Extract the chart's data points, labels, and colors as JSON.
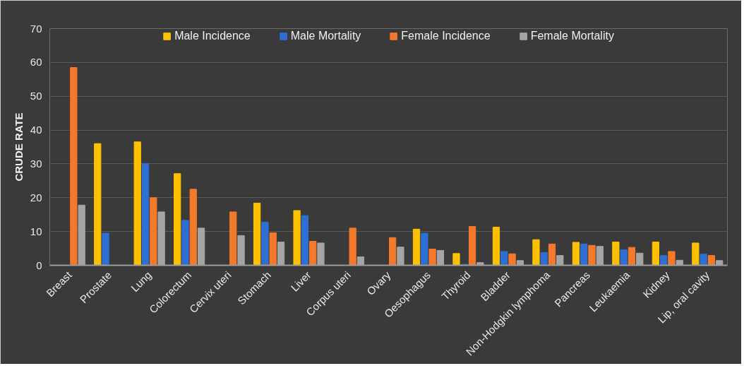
{
  "chart_data": {
    "type": "bar",
    "ylabel": "CRUDE RATE",
    "categories": [
      "Breast",
      "Prostate",
      "Lung",
      "Colorectum",
      "Cervix uteri",
      "Stomach",
      "Liver",
      "Corpus uteri",
      "Ovary",
      "Oesophagus",
      "Thyroid",
      "Bladder",
      "Non-Hodgkin lymphoma",
      "Pancreas",
      "Leukaemia",
      "Kidney",
      "Lip, oral cavity"
    ],
    "series": [
      {
        "name": "Male Incidence",
        "color": "#ffc000",
        "values": [
          null,
          36,
          36.5,
          27.1,
          null,
          18.4,
          16.2,
          null,
          null,
          10.7,
          3.5,
          11.3,
          7.6,
          6.8,
          6.9,
          6.9,
          6.6
        ]
      },
      {
        "name": "Male Mortality",
        "color": "#2e6fd6",
        "values": [
          null,
          9.5,
          30.1,
          13.3,
          null,
          12.8,
          14.7,
          null,
          null,
          9.5,
          0.3,
          4.1,
          3.8,
          6.3,
          4.6,
          2.9,
          3.3
        ]
      },
      {
        "name": "Female Incidence",
        "color": "#f4792a",
        "values": [
          58.5,
          null,
          20,
          22.5,
          15.8,
          9.6,
          7.1,
          11,
          8.2,
          4.8,
          11.5,
          3.4,
          6.3,
          5.9,
          5.3,
          4.1,
          2.9
        ]
      },
      {
        "name": "Female Mortality",
        "color": "#a5a5a5",
        "values": [
          17.8,
          null,
          15.8,
          11,
          8.8,
          6.9,
          6.6,
          2.5,
          5.4,
          4.4,
          0.8,
          1.4,
          2.9,
          5.6,
          3.6,
          1.5,
          1.4
        ]
      }
    ],
    "ylim": [
      0,
      70
    ],
    "yticks": [
      0,
      10,
      20,
      30,
      40,
      50,
      60,
      70
    ],
    "grid": "y",
    "legend": "top"
  }
}
